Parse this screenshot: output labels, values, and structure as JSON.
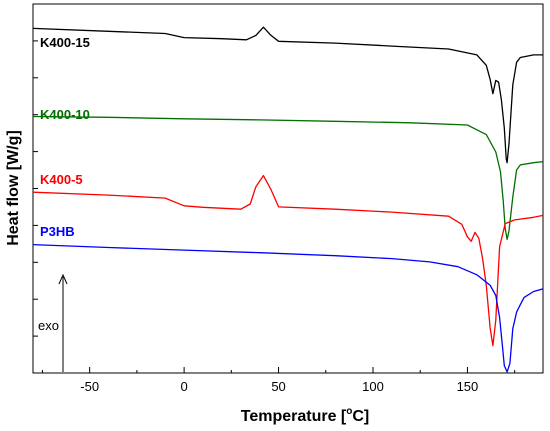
{
  "chart_data": {
    "type": "line",
    "xlabel": "Temperature",
    "xlabel_unit": "[",
    "xlabel_unit_sup": "o",
    "xlabel_unit_end": "C]",
    "ylabel": "Heat flow [W/g]",
    "xlim": [
      -80,
      190
    ],
    "ylim": [
      0,
      100
    ],
    "x_ticks": [
      -50,
      0,
      50,
      100,
      150
    ],
    "y_ticks_shown": false,
    "grid": false,
    "series": [
      {
        "name": "K400-15",
        "color": "#000000",
        "points": [
          [
            -80,
            93.4
          ],
          [
            -40,
            92.6
          ],
          [
            -10,
            92.0
          ],
          [
            0,
            90.9
          ],
          [
            20,
            90.6
          ],
          [
            33,
            90.3
          ],
          [
            38,
            91.5
          ],
          [
            42,
            93.7
          ],
          [
            46,
            91.5
          ],
          [
            50,
            89.9
          ],
          [
            80,
            89.4
          ],
          [
            110,
            88.6
          ],
          [
            140,
            87.8
          ],
          [
            155,
            86.2
          ],
          [
            160,
            83.4
          ],
          [
            162,
            79.6
          ],
          [
            163.5,
            75.7
          ],
          [
            165,
            79.3
          ],
          [
            166.5,
            78.8
          ],
          [
            168,
            74.0
          ],
          [
            169.5,
            66.4
          ],
          [
            170.5,
            58.1
          ],
          [
            171,
            57.0
          ],
          [
            172,
            62.2
          ],
          [
            174,
            78.1
          ],
          [
            176,
            84.2
          ],
          [
            178,
            85.5
          ],
          [
            185,
            86.2
          ],
          [
            190,
            86.2
          ]
        ]
      },
      {
        "name": "K400-10",
        "color": "#007000",
        "points": [
          [
            -80,
            69.5
          ],
          [
            -40,
            69.3
          ],
          [
            0,
            68.9
          ],
          [
            40,
            68.6
          ],
          [
            80,
            68.2
          ],
          [
            120,
            67.8
          ],
          [
            150,
            67.2
          ],
          [
            160,
            64.6
          ],
          [
            165,
            59.9
          ],
          [
            167.5,
            54.5
          ],
          [
            169,
            46.4
          ],
          [
            170,
            39.2
          ],
          [
            171,
            36.2
          ],
          [
            172,
            38.5
          ],
          [
            174,
            47.7
          ],
          [
            176,
            55.0
          ],
          [
            178,
            56.4
          ],
          [
            185,
            57.0
          ],
          [
            190,
            57.3
          ]
        ]
      },
      {
        "name": "K400-5",
        "color": "#ff0000",
        "points": [
          [
            -80,
            49.0
          ],
          [
            -40,
            48.2
          ],
          [
            -10,
            47.4
          ],
          [
            0,
            45.3
          ],
          [
            10,
            44.9
          ],
          [
            30,
            44.4
          ],
          [
            35,
            45.8
          ],
          [
            38,
            50.5
          ],
          [
            42,
            53.5
          ],
          [
            46,
            49.7
          ],
          [
            50,
            45.0
          ],
          [
            80,
            44.4
          ],
          [
            110,
            43.6
          ],
          [
            140,
            42.5
          ],
          [
            147,
            40.3
          ],
          [
            150,
            36.9
          ],
          [
            152,
            35.7
          ],
          [
            154,
            38.1
          ],
          [
            156,
            36.5
          ],
          [
            158,
            31.0
          ],
          [
            160,
            23.7
          ],
          [
            162,
            12.3
          ],
          [
            163.5,
            7.4
          ],
          [
            165,
            14.4
          ],
          [
            167,
            34.2
          ],
          [
            170,
            40.5
          ],
          [
            175,
            41.5
          ],
          [
            185,
            42.2
          ],
          [
            190,
            42.7
          ]
        ]
      },
      {
        "name": "P3HB",
        "color": "#0000ff",
        "points": [
          [
            -80,
            34.8
          ],
          [
            -40,
            34.0
          ],
          [
            0,
            33.3
          ],
          [
            40,
            32.6
          ],
          [
            80,
            31.8
          ],
          [
            110,
            31.0
          ],
          [
            130,
            30.1
          ],
          [
            145,
            28.8
          ],
          [
            155,
            26.6
          ],
          [
            162,
            23.8
          ],
          [
            165,
            21.0
          ],
          [
            167,
            15.0
          ],
          [
            168.5,
            7.4
          ],
          [
            169.5,
            2.0
          ],
          [
            171,
            0.3
          ],
          [
            172.5,
            2.6
          ],
          [
            174,
            12.0
          ],
          [
            176,
            16.5
          ],
          [
            178,
            18.5
          ],
          [
            180,
            20.5
          ],
          [
            185,
            22.1
          ],
          [
            190,
            22.8
          ]
        ]
      }
    ],
    "annotations": [
      {
        "text": "exo",
        "arrow_direction": "up"
      }
    ]
  }
}
